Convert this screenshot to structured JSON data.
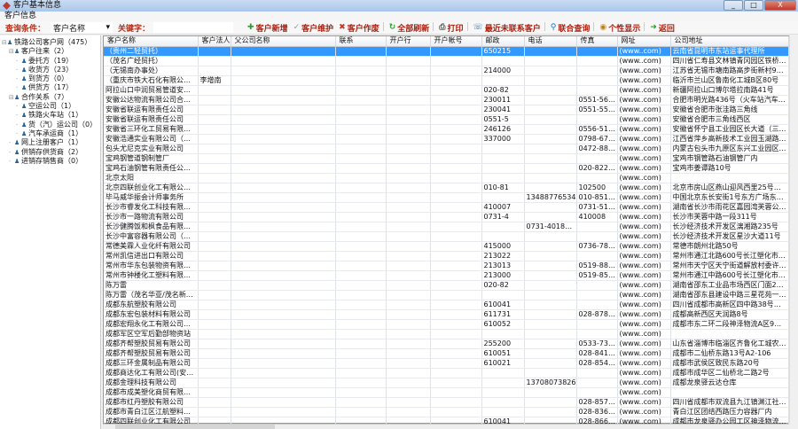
{
  "window": {
    "title": "客户基本信息",
    "minimize": "_",
    "restore": "□",
    "close": "X"
  },
  "menu": {
    "item": "客户信息"
  },
  "toolbar": {
    "condition_label": "查询条件：",
    "condition_value": "客户名称",
    "keyword_label": "关键字：",
    "keyword_value": "",
    "buttons": [
      {
        "icon": "plus-icon",
        "glyph": "✚",
        "color": "#2e9d2e",
        "label": "客户新增"
      },
      {
        "icon": "check-icon",
        "glyph": "✓",
        "color": "#999",
        "label": "客户维护"
      },
      {
        "icon": "delete-icon",
        "glyph": "✖",
        "color": "#c0392b",
        "label": "客户作废"
      },
      {
        "icon": "refresh-icon",
        "glyph": "↻",
        "color": "#2e9d2e",
        "label": "全部刷新"
      },
      {
        "icon": "print-icon",
        "glyph": "⎙",
        "color": "#555",
        "label": "打印"
      },
      {
        "icon": "contacts-icon",
        "glyph": "☏",
        "color": "#2a6496",
        "label": "最近未联系客户"
      },
      {
        "icon": "search-icon",
        "glyph": "⚲",
        "color": "#1b6fc2",
        "label": "联合查询"
      },
      {
        "icon": "eye-icon",
        "glyph": "◉",
        "color": "#c87f0a",
        "label": "个性显示"
      },
      {
        "icon": "arrow-icon",
        "glyph": "➜",
        "color": "#2e9d2e",
        "label": "返回"
      }
    ]
  },
  "tree": [
    {
      "label": "铁路公司客户网（475）",
      "level": 0,
      "expander": "⊟"
    },
    {
      "label": "客户往来（2）",
      "level": 1,
      "expander": "⊟"
    },
    {
      "label": "委托方（19）",
      "level": 2
    },
    {
      "label": "收货方（23）",
      "level": 2
    },
    {
      "label": "到货方（0）",
      "level": 2
    },
    {
      "label": "供货方（17）",
      "level": 2
    },
    {
      "label": "合作关系（7）",
      "level": 1,
      "expander": "⊟"
    },
    {
      "label": "空运公司（1）",
      "level": 2
    },
    {
      "label": "铁路火车站（1）",
      "level": 2
    },
    {
      "label": "货（汽）运公司（0）",
      "level": 2
    },
    {
      "label": "汽车承运商（1）",
      "level": 2
    },
    {
      "label": "网上注册客户（1）",
      "level": 1
    },
    {
      "label": "供销存供货商（2）",
      "level": 1
    },
    {
      "label": "进销存销售商（0）",
      "level": 1
    }
  ],
  "grid": {
    "columns": [
      "客户名称",
      "客户法人",
      "父公司名称",
      "联系",
      "开户行",
      "开户帐号",
      "邮政",
      "电话",
      "传真",
      "网址",
      "公司地址"
    ],
    "selected_row": 0,
    "rows": [
      [
        "（贵州二轻贸托）",
        "",
        "",
        "",
        "",
        "",
        "650215",
        "",
        "",
        "(www..com)",
        "云南省昆明市东站运事代理所"
      ],
      [
        "（茂名广经贸托）",
        "",
        "",
        "",
        "",
        "",
        "",
        "",
        "",
        "(www..com)",
        "四川省仁寿县文林镇青冈园区铁桥乡政府"
      ],
      [
        "（无锡南办事处）",
        "",
        "",
        "",
        "",
        "",
        "214000",
        "",
        "",
        "(www..com)",
        "江苏省无锡市塘南路高步街新村96号401室"
      ],
      [
        "（重庆市铁大石化有限公司）",
        "李增南",
        "",
        "",
        "",
        "",
        "",
        "",
        "",
        "(www..com)",
        "临沂市兰山区鲁南化工城B区80号"
      ],
      [
        "阿拉山口中润贸易管道安装防...",
        "",
        "",
        "",
        "",
        "",
        "020-82",
        "",
        "",
        "(www..com)",
        "新疆阿拉山口博尔塔拉南路41号"
      ],
      [
        "安徽公达物流有限公司合肥分...",
        "",
        "",
        "",
        "",
        "",
        "230011",
        "",
        "0551-5612...",
        "(www..com)",
        "合肥市明光路436号（火车站汽车队）"
      ],
      [
        "安徽省联运有限责任公司",
        "",
        "",
        "",
        "",
        "",
        "230041",
        "",
        "0551-5524...",
        "(www..com)",
        "安徽省合肥市张洼路三角线"
      ],
      [
        "安徽省联运有限责任公司",
        "",
        "",
        "",
        "",
        "",
        "0551-5",
        "",
        "",
        "(www..com)",
        "安徽省合肥市三角线西区"
      ],
      [
        "安徽省三环化工贸易有限公司",
        "",
        "",
        "",
        "",
        "",
        "246126",
        "",
        "0556-5151...",
        "(www..com)",
        "安徽省怀宁县工业园区长大道（三环集团..."
      ],
      [
        "安徽浩通实业有限公司（浙江...",
        "",
        "",
        "",
        "",
        "",
        "337000",
        "",
        "0798-6796...",
        "(www..com)",
        "江西省萍乡高新技术工业园玉湖路1号"
      ],
      [
        "包头尤尼克实业有限公司",
        "",
        "",
        "",
        "",
        "",
        "",
        "",
        "0472-8856...",
        "(www..com)",
        "内蒙古包头市九原区东兴工业园区尤尼克..."
      ],
      [
        "宝鸡钢管道钢制管厂",
        "",
        "",
        "",
        "",
        "",
        "",
        "",
        "",
        "(www..com)",
        "宝鸡市钢管路石油钢管厂内"
      ],
      [
        "宝鸡石油钢管有限责任公司（...",
        "",
        "",
        "",
        "",
        "",
        "",
        "",
        "020-82251...",
        "(www..com)",
        "宝鸡市姜谭路10号"
      ],
      [
        "北京太阳",
        "",
        "",
        "",
        "",
        "",
        "",
        "",
        "",
        "(www..com)",
        ""
      ],
      [
        "北京四联创业化工有限公司（...",
        "",
        "",
        "",
        "",
        "",
        "010-81",
        "",
        "102500",
        "(www..com)",
        "北京市房山区燕山迎风西里25号楼西侧"
      ],
      [
        "毕马威华振会计师事务所",
        "",
        "",
        "",
        "",
        "",
        "",
        "13488776534",
        "010-85185...",
        "(www..com)",
        "中国北京东长安街1号东方广场东2座办公..."
      ],
      [
        "长沙市睿发化工科技有限公司",
        "",
        "",
        "",
        "",
        "",
        "410007",
        "",
        "0731-5161...",
        "(www..com)",
        "湖南省长沙市雨花区嘉园湾芙蓉公寓2402#"
      ],
      [
        "长沙市一路物流有限公司",
        "",
        "",
        "",
        "",
        "",
        "0731-4",
        "",
        "410008",
        "(www..com)",
        "长沙市芙蓉中路一段311号"
      ],
      [
        "长沙健腾饭和枫食品有限公司",
        "",
        "",
        "",
        "",
        "",
        "",
        "0731-4018952",
        "",
        "(www..com)",
        "长沙经济技术开发区漓湘路235号"
      ],
      [
        "长沙中富容器有限公司（广州...",
        "",
        "",
        "",
        "",
        "",
        "",
        "",
        "",
        "(www..com)",
        "长沙经济技术开发区星沙大道11号"
      ],
      [
        "常德美霖人业化纤有限公司",
        "",
        "",
        "",
        "",
        "",
        "415000",
        "",
        "0736-7896...",
        "(www..com)",
        "常德市朗州北路50号"
      ],
      [
        "常州凯信进出口有限公司",
        "",
        "",
        "",
        "",
        "",
        "213022",
        "",
        "",
        "(www..com)",
        "常州市通江北路600号长江塑化市场7-01"
      ],
      [
        "常州市华东包装物资有限公司...",
        "",
        "",
        "",
        "",
        "",
        "213013",
        "",
        "0519-8885...",
        "(www..com)",
        "常州市天宁区天宁街道解放村委许家村53号"
      ],
      [
        "常州市钟楼化工塑料有限公司",
        "",
        "",
        "",
        "",
        "",
        "213000",
        "",
        "0519-8576...",
        "(www..com)",
        "常州市通江中路600号长江塑化市场1-9号"
      ],
      [
        "陈万雷",
        "",
        "",
        "",
        "",
        "",
        "020-82",
        "",
        "",
        "(www..com)",
        "湖南省邵东工业品市场西区门面22号"
      ],
      [
        "陈万雷（茂名华亚/茂名新孔...",
        "",
        "",
        "",
        "",
        "",
        "",
        "",
        "",
        "(www..com)",
        "湖南省邵东县建设中路三星花苑一号门面"
      ],
      [
        "成都东航塑胶有限公司",
        "",
        "",
        "",
        "",
        "",
        "610041",
        "",
        "",
        "(www..com)",
        "四川省成都市高新区四中路38号（神仙树..."
      ],
      [
        "成都东宏包装材料有限公司",
        "",
        "",
        "",
        "",
        "",
        "611731",
        "",
        "028-87848...",
        "(www..com)",
        "成都高新西区天润路8号"
      ],
      [
        "成都宏翔永化工有限公司（重...",
        "",
        "",
        "",
        "",
        "",
        "610052",
        "",
        "",
        "(www..com)",
        "成都市东二环二段神泽物流A区9栋8号"
      ],
      [
        "成都军区空军后勤部物资站",
        "",
        "",
        "",
        "",
        "",
        "",
        "",
        "",
        "(www..com)",
        ""
      ],
      [
        "成都齐帮塑胶贸易有限公司",
        "",
        "",
        "",
        "",
        "",
        "255200",
        "",
        "0533-7369...",
        "(www..com)",
        "山东省淄博市临淄区齐鲁化工城农行二楼..."
      ],
      [
        "成都齐帮塑胶贸易有限公司",
        "",
        "",
        "",
        "",
        "",
        "610051",
        "",
        "028-84127...",
        "(www..com)",
        "成都市二仙桥东路13号A2-106"
      ],
      [
        "成都三环金属制品有限公司",
        "",
        "",
        "",
        "",
        "",
        "610021",
        "",
        "028-85431...",
        "(www..com)",
        "成都市武侯区致民东路20号"
      ],
      [
        "成都商达化工有限公司(安徽...",
        "",
        "",
        "",
        "",
        "",
        "",
        "",
        "",
        "(www..com)",
        "成都市成华区二仙桥北二路2号"
      ],
      [
        "成都金理科技有限公司",
        "",
        "",
        "",
        "",
        "",
        "",
        "13708073826",
        "",
        "(www..com)",
        "成都龙泉驿云达仓库"
      ],
      [
        "成都市成美塑化商贸有限公司",
        "",
        "",
        "",
        "",
        "",
        "",
        "",
        "",
        "(www..com)",
        ""
      ],
      [
        "成都市红丹塑胶有限公司",
        "",
        "",
        "",
        "",
        "",
        "",
        "",
        "028-85791...",
        "(www..com)",
        "四川省成都市双流县九江镇渊江社区纷力..."
      ],
      [
        "成都市青白江区江航塑料编织...",
        "",
        "",
        "",
        "",
        "",
        "",
        "",
        "028-83611...",
        "(www..com)",
        "青白江区团结西路压力容器厂内"
      ],
      [
        "成都四联创业化工有限公司",
        "",
        "",
        "",
        "",
        "",
        "610041",
        "",
        "028-86675...",
        "(www..com)",
        "成都市龙泉驿办公园工区神泽物流中心B..."
      ]
    ]
  }
}
